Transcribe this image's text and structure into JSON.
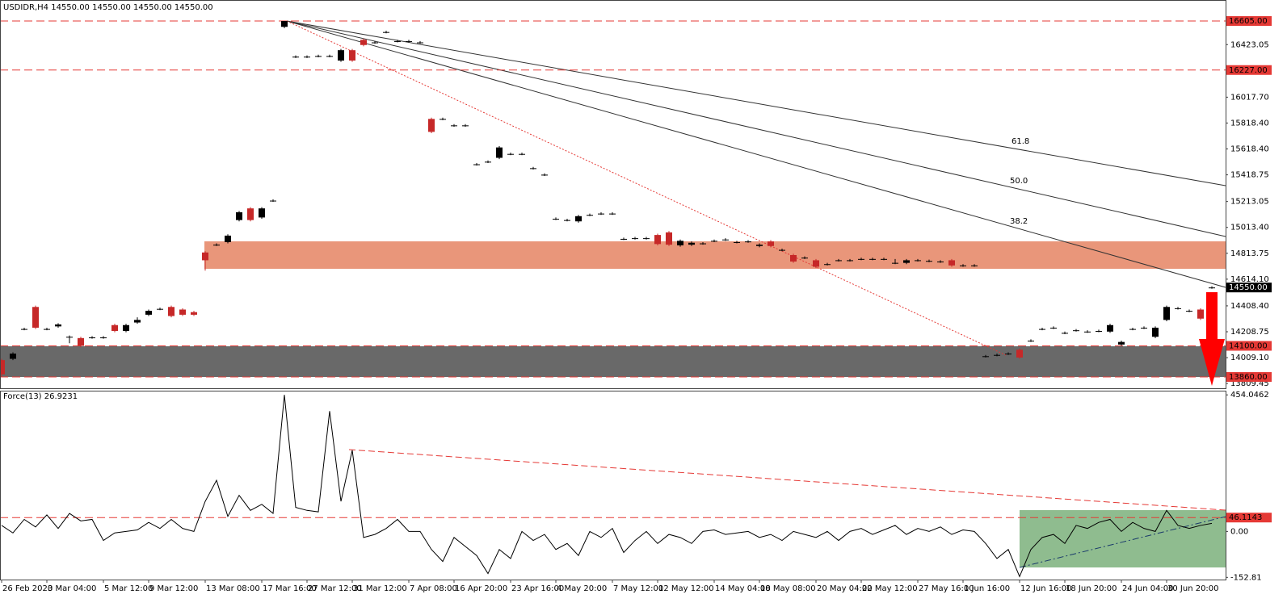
{
  "chart_data": [
    {
      "type": "candlestick",
      "title": "USDIDR,H4  14550.00 14550.00 14550.00 14550.00",
      "categories": [
        "26 Feb 2020",
        null,
        null,
        null,
        "3 Mar 04:00",
        null,
        null,
        null,
        null,
        "5 Mar 12:00",
        null,
        null,
        null,
        "9 Mar 12:00",
        null,
        null,
        null,
        null,
        "13 Mar 08:00",
        null,
        null,
        null,
        null,
        "17 Mar 16:00",
        null,
        null,
        null,
        "27 Mar 12:00",
        null,
        null,
        null,
        "31 Mar 12:00",
        null,
        null,
        null,
        null,
        "7 Apr 08:00",
        null,
        null,
        null,
        "16 Apr 20:00",
        null,
        null,
        null,
        null,
        "23 Apr 16:00",
        null,
        null,
        null,
        "4 May 20:00",
        null,
        null,
        null,
        null,
        "7 May 12:00",
        null,
        null,
        null,
        "12 May 12:00",
        null,
        null,
        null,
        null,
        "14 May 04:00",
        null,
        null,
        null,
        "18 May 08:00",
        null,
        null,
        null,
        null,
        "20 May 04:00",
        null,
        null,
        null,
        "22 May 12:00",
        null,
        null,
        null,
        null,
        "27 May 16:00",
        null,
        null,
        null,
        "1 Jun 16:00",
        null,
        null,
        null,
        null,
        "12 Jun 16:00",
        null,
        null,
        null,
        "18 Jun 20:00",
        null,
        null,
        null,
        null,
        "24 Jun 04:00",
        null,
        null,
        null,
        "30 Jun 20:00",
        null,
        null,
        null,
        null
      ],
      "open": [
        13990,
        14000,
        14230,
        14400,
        14230,
        14250,
        14170,
        14160,
        14165,
        14165,
        14260,
        14215,
        14280,
        14340,
        14385,
        14400,
        14380,
        14360,
        14820,
        14880,
        14900,
        15070,
        15160,
        15090,
        15220,
        16560,
        16330,
        16330,
        16335,
        16335,
        16300,
        16380,
        16460,
        16440,
        16520,
        16450,
        16450,
        16440,
        15850,
        15850,
        15800,
        15800,
        15500,
        15520,
        15550,
        15580,
        15580,
        15470,
        15420,
        15080,
        15070,
        15060,
        15110,
        15120,
        15120,
        14925,
        14930,
        14930,
        14955,
        14975,
        14875,
        14880,
        14890,
        14910,
        14920,
        14900,
        14905,
        14870,
        14905,
        14840,
        14800,
        14780,
        14760,
        14730,
        14760,
        14760,
        14770,
        14770,
        14770,
        14740,
        14740,
        14760,
        14755,
        14750,
        14760,
        14720,
        14720,
        14020,
        14030,
        14040,
        14070,
        14140,
        14230,
        14240,
        14200,
        14220,
        14210,
        14215,
        14210,
        14110,
        14230,
        14240,
        14170,
        14300,
        14390,
        14370,
        14380,
        14550
      ],
      "high": [
        14000,
        14050,
        14240,
        14410,
        14240,
        14275,
        14180,
        14170,
        14175,
        14175,
        14270,
        14270,
        14320,
        14380,
        14395,
        14410,
        14390,
        14370,
        14830,
        14890,
        14960,
        15140,
        15170,
        15170,
        15230,
        16605,
        16340,
        16340,
        16345,
        16345,
        16390,
        16390,
        16470,
        16450,
        16530,
        16460,
        16460,
        16450,
        15860,
        15860,
        15810,
        15810,
        15510,
        15530,
        15640,
        15590,
        15590,
        15480,
        15430,
        15090,
        15080,
        15110,
        15120,
        15130,
        15130,
        14935,
        14940,
        14940,
        14965,
        14985,
        14920,
        14905,
        14900,
        14920,
        14930,
        14910,
        14915,
        14890,
        14915,
        14850,
        14810,
        14790,
        14770,
        14740,
        14770,
        14770,
        14780,
        14780,
        14780,
        14770,
        14770,
        14770,
        14765,
        14760,
        14770,
        14730,
        14730,
        14030,
        14040,
        14050,
        14080,
        14150,
        14240,
        14250,
        14210,
        14230,
        14220,
        14225,
        14270,
        14140,
        14240,
        14250,
        14250,
        14410,
        14400,
        14380,
        14390,
        14560
      ],
      "low": [
        13860,
        13990,
        14220,
        14230,
        14220,
        14240,
        14120,
        14090,
        14155,
        14155,
        14205,
        14205,
        14270,
        14330,
        14375,
        14320,
        14330,
        14330,
        14680,
        14870,
        14890,
        15060,
        15060,
        15080,
        15210,
        16550,
        16320,
        16320,
        16325,
        16325,
        16290,
        16290,
        16410,
        16430,
        16510,
        16440,
        16440,
        16430,
        15740,
        15840,
        15790,
        15790,
        15490,
        15510,
        15540,
        15570,
        15570,
        15460,
        15410,
        15070,
        15060,
        15050,
        15100,
        15110,
        15110,
        14915,
        14920,
        14920,
        14875,
        14870,
        14865,
        14870,
        14880,
        14900,
        14910,
        14890,
        14895,
        14860,
        14860,
        14830,
        14740,
        14770,
        14700,
        14720,
        14750,
        14750,
        14760,
        14760,
        14760,
        14730,
        14730,
        14750,
        14745,
        14740,
        14710,
        14710,
        14710,
        14010,
        14020,
        14030,
        14000,
        14130,
        14220,
        14230,
        14190,
        14210,
        14200,
        14205,
        14200,
        14100,
        14220,
        14230,
        14160,
        14290,
        14380,
        14360,
        14300,
        14540
      ],
      "close": [
        13880,
        14040,
        14230,
        14240,
        14230,
        14265,
        14170,
        14100,
        14165,
        14165,
        14215,
        14260,
        14300,
        14370,
        14385,
        14330,
        14340,
        14340,
        14760,
        14880,
        14950,
        15130,
        15070,
        15160,
        15220,
        16605,
        16330,
        16330,
        16335,
        16335,
        16380,
        16300,
        16420,
        16440,
        16520,
        16450,
        16450,
        16440,
        15750,
        15850,
        15800,
        15800,
        15500,
        15520,
        15630,
        15580,
        15580,
        15470,
        15420,
        15080,
        15070,
        15100,
        15110,
        15120,
        15120,
        14925,
        14930,
        14930,
        14885,
        14880,
        14910,
        14895,
        14890,
        14910,
        14920,
        14900,
        14905,
        14880,
        14870,
        14840,
        14750,
        14780,
        14710,
        14730,
        14760,
        14760,
        14770,
        14770,
        14770,
        14740,
        14760,
        14760,
        14755,
        14750,
        14720,
        14720,
        14720,
        14020,
        14030,
        14040,
        14010,
        14140,
        14230,
        14240,
        14200,
        14220,
        14210,
        14215,
        14260,
        14130,
        14230,
        14240,
        14240,
        14400,
        14390,
        14370,
        14310,
        14550
      ],
      "up_color": "#000000",
      "down_color": "#c62828",
      "ylim": [
        13773,
        16767
      ],
      "yticks": [
        {
          "value": 16423.05,
          "label": "16423.05"
        },
        {
          "value": 16017.7,
          "label": "16017.70"
        },
        {
          "value": 15818.4,
          "label": "15818.40"
        },
        {
          "value": 15618.4,
          "label": "15618.40"
        },
        {
          "value": 15418.75,
          "label": "15418.75"
        },
        {
          "value": 15213.05,
          "label": "15213.05"
        },
        {
          "value": 15013.4,
          "label": "15013.40"
        },
        {
          "value": 14813.75,
          "label": "14813.75"
        },
        {
          "value": 14614.1,
          "label": "14614.10"
        },
        {
          "value": 14408.4,
          "label": "14408.40"
        },
        {
          "value": 14208.75,
          "label": "14208.75"
        },
        {
          "value": 14009.1,
          "label": "14009.10"
        },
        {
          "value": 13809.45,
          "label": "13809.45"
        }
      ],
      "levels": [
        {
          "value": 16605,
          "label": "16605.00"
        },
        {
          "value": 16227,
          "label": "16227.00"
        },
        {
          "value": 14100,
          "label": "14100.00"
        },
        {
          "value": 13860,
          "label": "13860.00"
        }
      ],
      "current_price": {
        "value": 14550,
        "label": "14550.00"
      },
      "annotations": [
        "61.8",
        "50.0",
        "38.2"
      ]
    },
    {
      "type": "line",
      "title": "Force(13) 26.9231",
      "color": "#000000",
      "values": [
        20,
        -5,
        40,
        15,
        55,
        10,
        60,
        35,
        40,
        -30,
        -5,
        0,
        5,
        30,
        10,
        40,
        10,
        0,
        100,
        170,
        50,
        120,
        70,
        90,
        60,
        454,
        80,
        70,
        65,
        400,
        100,
        270,
        -20,
        -10,
        10,
        40,
        0,
        0,
        -60,
        -100,
        -20,
        -50,
        -80,
        -140,
        -60,
        -90,
        0,
        -30,
        -10,
        -60,
        -40,
        -80,
        0,
        -20,
        10,
        -70,
        -30,
        0,
        -40,
        -10,
        -20,
        -40,
        0,
        5,
        -10,
        -5,
        0,
        -20,
        -10,
        -30,
        0,
        -10,
        -20,
        0,
        -30,
        0,
        10,
        -10,
        5,
        20,
        -10,
        10,
        0,
        15,
        -10,
        5,
        0,
        -40,
        -90,
        -60,
        -150,
        -60,
        -20,
        -10,
        -40,
        20,
        10,
        30,
        40,
        0,
        30,
        10,
        0,
        70,
        20,
        10,
        20,
        26.9231
      ],
      "ylim": [
        -160,
        468
      ],
      "yticks": [
        454.0462,
        {
          "value": 0,
          "label": "0.00"
        },
        -152.81
      ],
      "levels": [
        {
          "value": 46.1143,
          "label": "46.1143"
        }
      ]
    }
  ]
}
